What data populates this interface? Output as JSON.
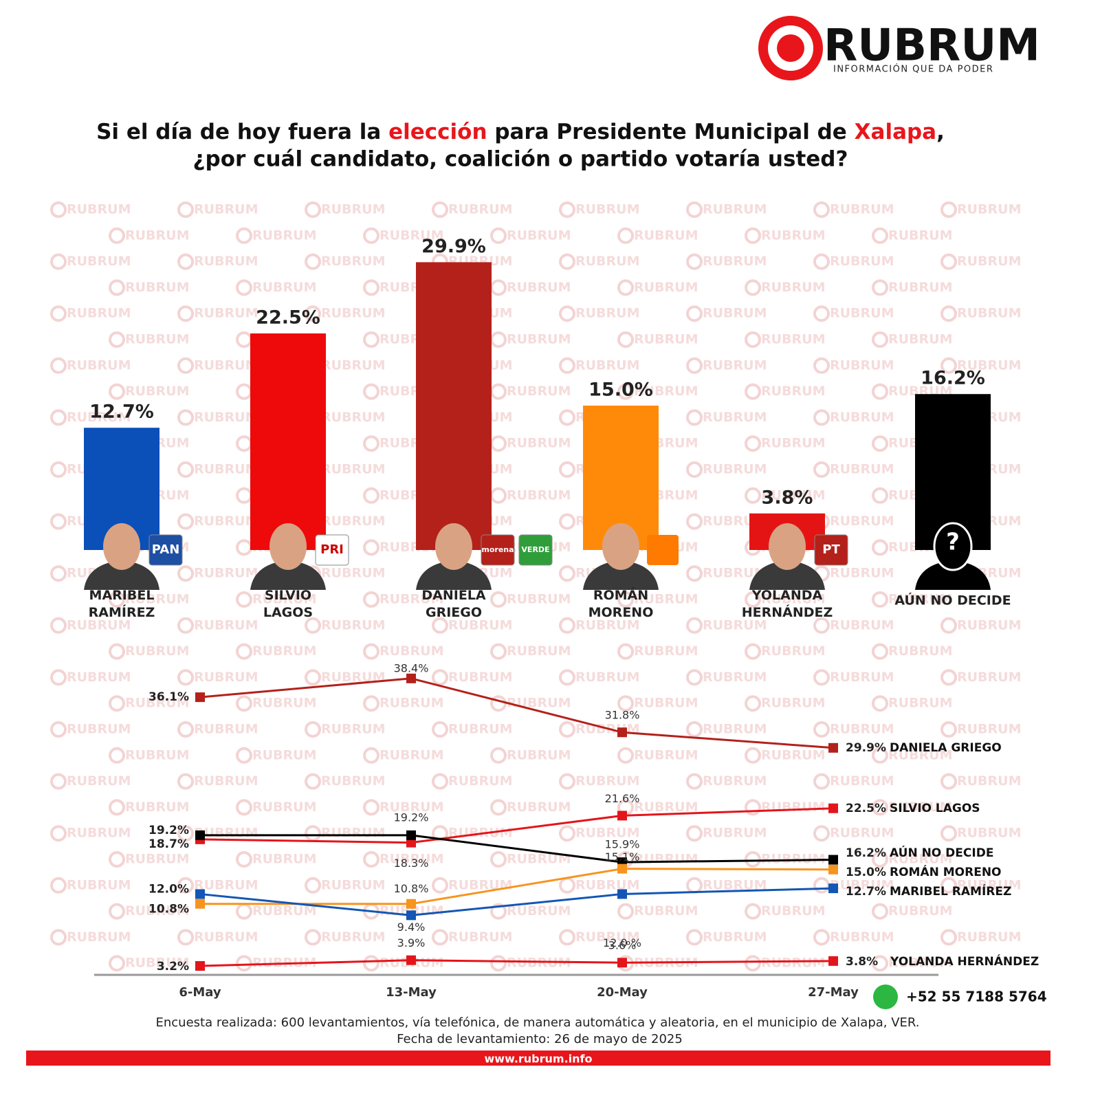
{
  "header": {
    "logo": "RUBRUM",
    "tagline": "INFORMACIÓN QUE DA PODER",
    "title": [
      [
        "Si el día de hoy fuera la ",
        "elección",
        " para Presidente Municipal de ",
        "Xalapa",
        ","
      ],
      [
        "¿por cuál candidato, coalición o partido votaría usted?"
      ]
    ]
  },
  "watermark": "RUBRUM",
  "chart_data": [
    {
      "type": "bar",
      "categories": [
        "MARIBEL RAMÍREZ",
        "SILVIO LAGOS",
        "DANIELA GRIEGO",
        "ROMÁN MORENO",
        "YOLANDA HERNÁNDEZ",
        "AÚN NO DECIDE"
      ],
      "values": [
        12.7,
        22.5,
        29.9,
        15.0,
        3.8,
        16.2
      ],
      "value_labels": [
        "12.7%",
        "22.5%",
        "29.9%",
        "15.0%",
        "3.8%",
        "16.2%"
      ],
      "colors": [
        "#0b4fb8",
        "#ee0a0a",
        "#b3211a",
        "#ff8a0a",
        "#e51414",
        "#000000"
      ],
      "party_logos": [
        [
          "PAN"
        ],
        [
          "PRI"
        ],
        [
          "morena",
          "VERDE"
        ],
        [],
        [
          "PT"
        ],
        [
          "?"
        ]
      ]
    },
    {
      "type": "line",
      "categories": [
        "6-May",
        "13-May",
        "20-May",
        "27-May"
      ],
      "series": [
        {
          "name": "DANIELA GRIEGO",
          "color": "#b3211a",
          "values": [
            36.1,
            38.4,
            31.8,
            29.9
          ],
          "value_labels": [
            "36.1%",
            "38.4%",
            "31.8%",
            "29.9%"
          ]
        },
        {
          "name": "SILVIO LAGOS",
          "color": "#e3151b",
          "values": [
            18.7,
            18.3,
            21.6,
            22.5
          ],
          "value_labels": [
            "18.7%",
            "18.3%",
            "21.6%",
            "22.5%"
          ]
        },
        {
          "name": "AÚN NO DECIDE",
          "color": "#000000",
          "values": [
            19.2,
            19.2,
            15.9,
            16.2
          ],
          "value_labels": [
            "19.2%",
            "19.2%",
            "15.9%",
            "16.2%"
          ]
        },
        {
          "name": "ROMÁN MORENO",
          "color": "#f7941d",
          "values": [
            10.8,
            10.8,
            15.1,
            15.0
          ],
          "value_labels": [
            "10.8%",
            "10.8%",
            "15.1%",
            "15.0%"
          ]
        },
        {
          "name": "MARIBEL RAMÍREZ",
          "color": "#1356b5",
          "values": [
            12.0,
            9.4,
            12.0,
            12.7
          ],
          "value_labels": [
            "12.0%",
            "9.4%",
            "12.0 %",
            "12.7%"
          ]
        },
        {
          "name": "YOLANDA HERNÁNDEZ",
          "color": "#e3151b",
          "values": [
            3.2,
            3.9,
            3.6,
            3.8
          ],
          "value_labels": [
            "3.2%",
            "3.9%",
            "3.6%",
            "3.8%"
          ]
        }
      ]
    }
  ],
  "footer": {
    "phone": "+52 55 7188 5764",
    "note": [
      "Encuesta realizada: 600 levantamientos, vía telefónica, de manera automática y aleatoria, en el municipio de Xalapa, VER.",
      "Fecha de levantamiento: 26 de mayo de 2025"
    ],
    "url": "www.rubrum.info"
  }
}
